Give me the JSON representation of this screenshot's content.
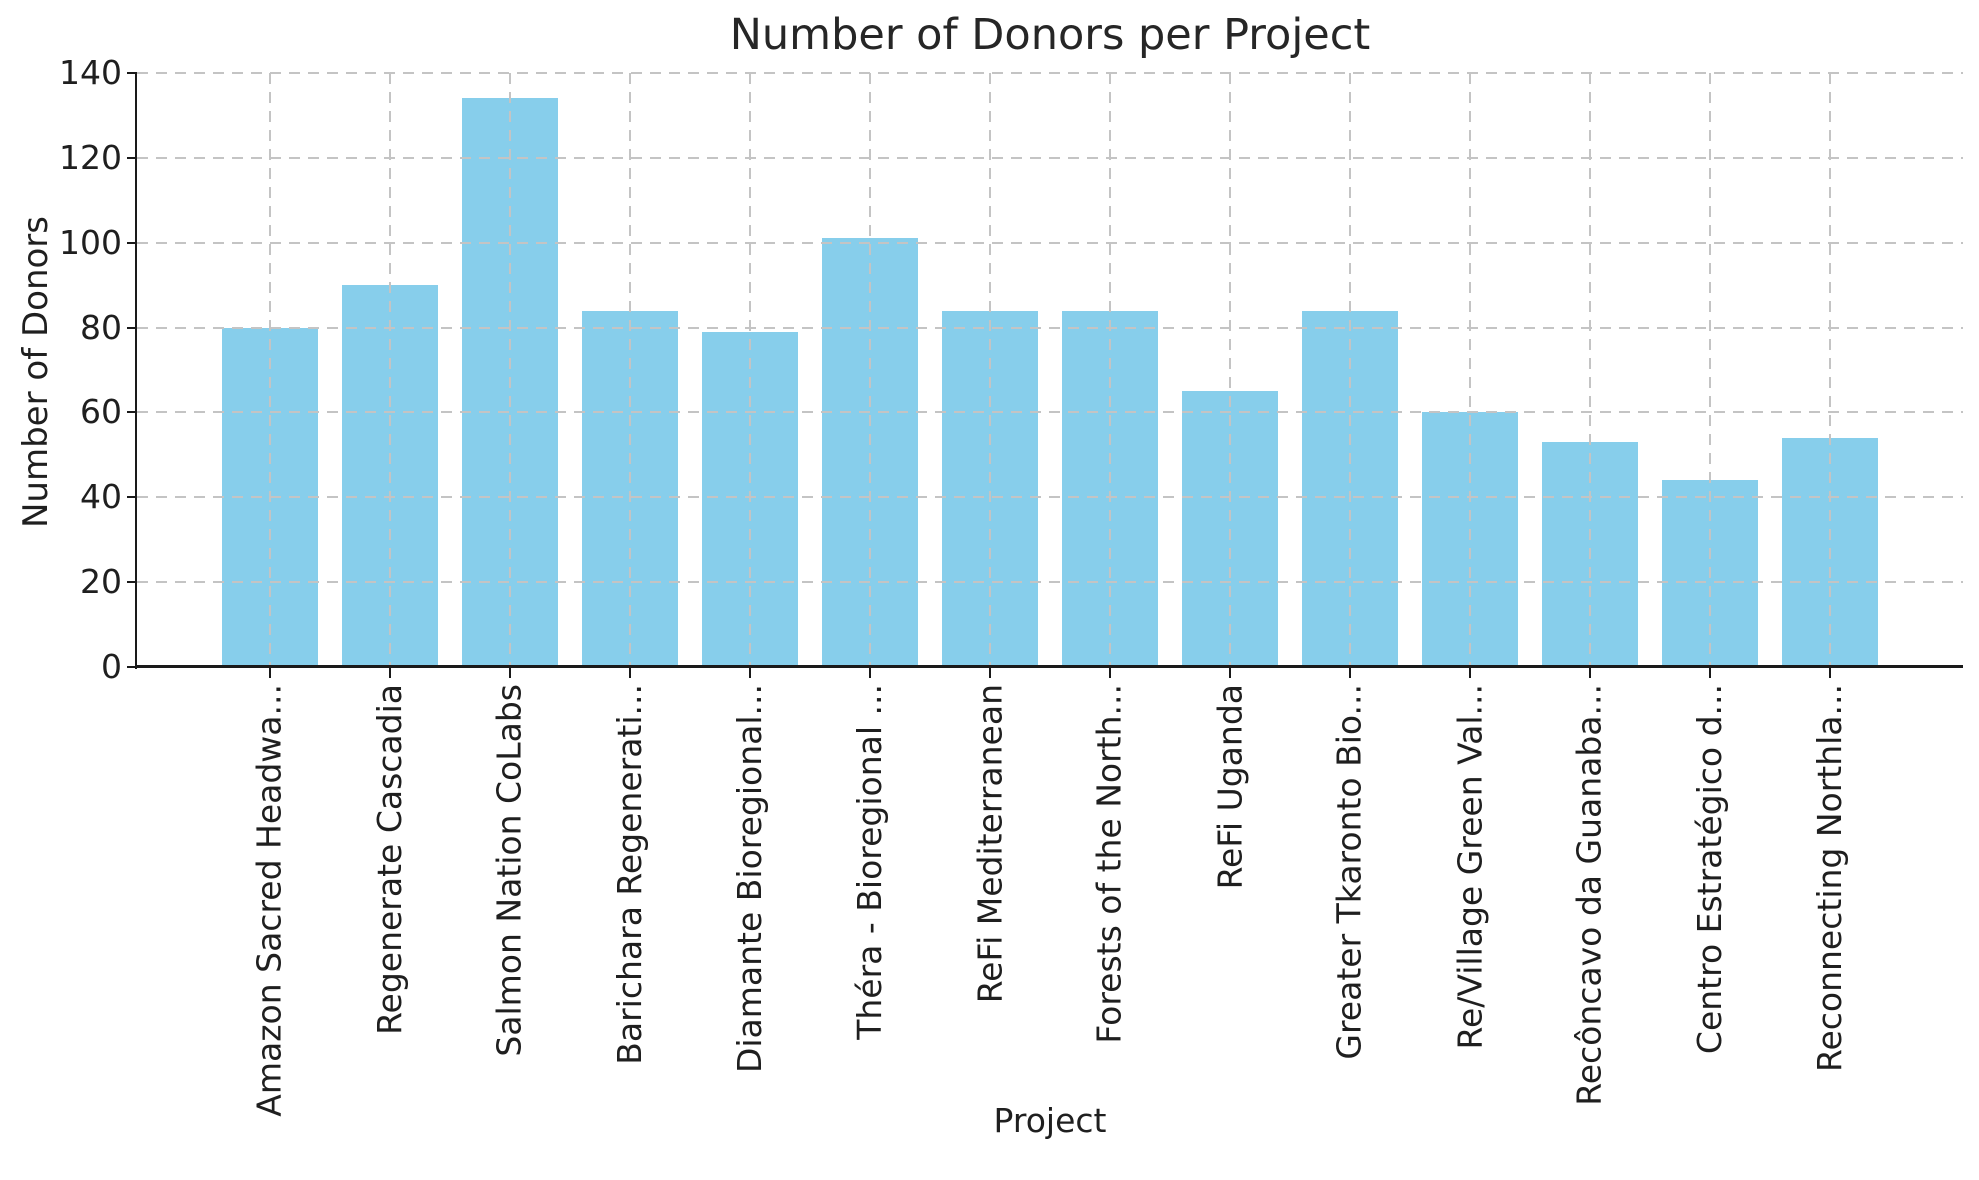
{
  "chart_data": {
    "type": "bar",
    "title": "Number of Donors per Project",
    "xlabel": "Project",
    "ylabel": "Number of Donors",
    "categories": [
      "Amazon Sacred Headwa...",
      "Regenerate Cascadia",
      "Salmon Nation CoLabs",
      "Barichara Regenerati...",
      "Diamante Bioregional...",
      "Théra - Bioregional ...",
      "ReFi Mediterranean",
      "Forests of the North...",
      "ReFi Uganda",
      "Greater Tkaronto Bio...",
      "Re/Village Green Val...",
      "Recôncavo da Guanaba...",
      "Centro Estratégico d...",
      "Reconnecting Northla..."
    ],
    "values": [
      80,
      90,
      134,
      84,
      79,
      101,
      84,
      84,
      65,
      84,
      60,
      53,
      44,
      54
    ],
    "ylim": [
      0,
      140
    ],
    "yticks": [
      0,
      20,
      40,
      60,
      80,
      100,
      120,
      140
    ],
    "legend": "none",
    "grid": "dashed horizontal and vertical gridlines, drawn above bars",
    "bar_color": "#87CEEB",
    "grid_color": "#c4c4c4",
    "axis_color": "#1a1a1a",
    "text_color": "#1f1f1f",
    "background_color": "#ffffff"
  }
}
